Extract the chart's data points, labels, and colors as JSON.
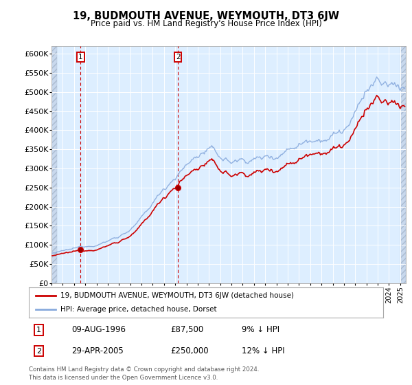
{
  "title": "19, BUDMOUTH AVENUE, WEYMOUTH, DT3 6JW",
  "subtitle": "Price paid vs. HM Land Registry's House Price Index (HPI)",
  "legend_line1": "19, BUDMOUTH AVENUE, WEYMOUTH, DT3 6JW (detached house)",
  "legend_line2": "HPI: Average price, detached house, Dorset",
  "transaction1_date": "09-AUG-1996",
  "transaction1_price": 87500,
  "transaction1_label": "9% ↓ HPI",
  "transaction2_date": "29-APR-2005",
  "transaction2_price": 250000,
  "transaction2_label": "12% ↓ HPI",
  "footer": "Contains HM Land Registry data © Crown copyright and database right 2024.\nThis data is licensed under the Open Government Licence v3.0.",
  "ylim": [
    0,
    620000
  ],
  "yticks": [
    0,
    50000,
    100000,
    150000,
    200000,
    250000,
    300000,
    350000,
    400000,
    450000,
    500000,
    550000,
    600000
  ],
  "plot_bg": "#ddeeff",
  "red_color": "#cc0000",
  "blue_color": "#88aadd",
  "grid_color": "#ffffff",
  "hatch_bg": "#c8d8ed"
}
